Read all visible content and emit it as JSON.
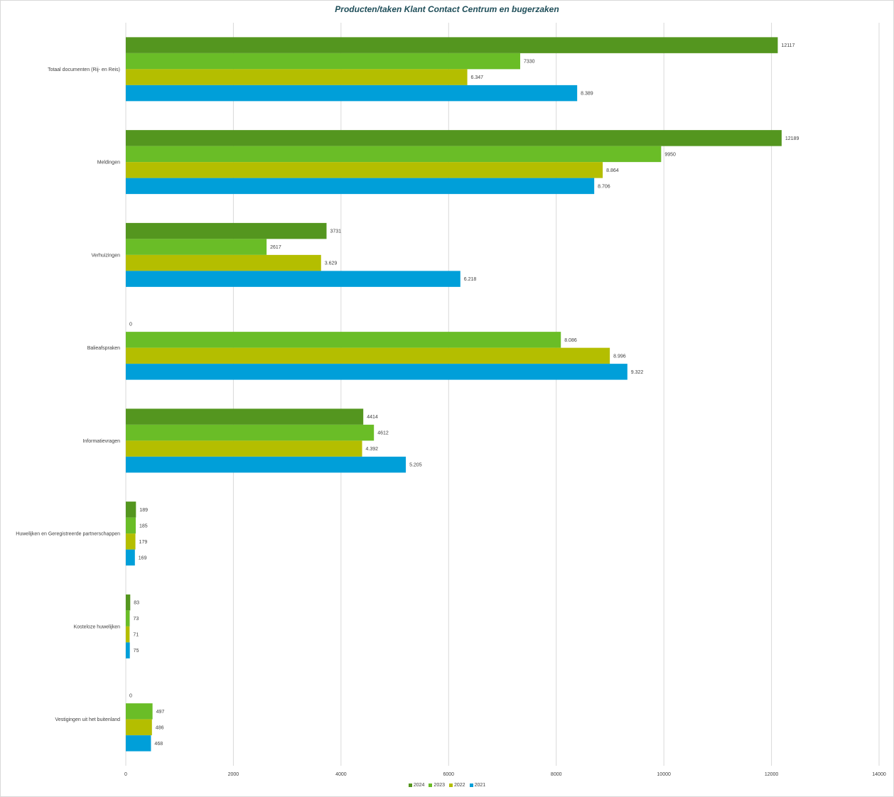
{
  "chart_data": {
    "type": "bar",
    "orientation": "horizontal",
    "title": "Producten/taken  Klant Contact Centrum en bugerzaken",
    "categories": [
      "Totaal documenten (Rij- en Reis)",
      "Meldingen",
      "Verhuizingen",
      "Balieafspraken",
      "Informatievragen",
      "Huwelijken en Geregistreerde partnerschappen",
      "Kosteloze huwelijken",
      "Vestigingen uit het buitenland"
    ],
    "series": [
      {
        "name": "2024",
        "color": "#54961f",
        "values": [
          12117,
          12189,
          3731,
          0,
          4414,
          189,
          83,
          0
        ],
        "labels": [
          "12117",
          "12189",
          "3731",
          "0",
          "4414",
          "189",
          "83",
          "0"
        ]
      },
      {
        "name": "2023",
        "color": "#6abd27",
        "values": [
          7330,
          9950,
          2617,
          8086,
          4612,
          185,
          73,
          497
        ],
        "labels": [
          "7330",
          "9950",
          "2617",
          "8.086",
          "4612",
          "185",
          "73",
          "497"
        ]
      },
      {
        "name": "2022",
        "color": "#b4be00",
        "values": [
          6347,
          8864,
          3629,
          8996,
          4392,
          179,
          71,
          486
        ],
        "labels": [
          "6.347",
          "8.864",
          "3.629",
          "8.996",
          "4.392",
          "179",
          "71",
          "486"
        ]
      },
      {
        "name": "2021",
        "color": "#009fd9",
        "values": [
          8389,
          8706,
          6218,
          9322,
          5205,
          169,
          75,
          468
        ],
        "labels": [
          "8.389",
          "8.706",
          "6.218",
          "9.322",
          "5.205",
          "169",
          "75",
          "468"
        ]
      }
    ],
    "xlim": [
      0,
      14000
    ],
    "xticks": [
      "0",
      "2000",
      "4000",
      "6000",
      "8000",
      "10000",
      "12000",
      "14000"
    ],
    "grid": true,
    "legend_position": "bottom"
  }
}
